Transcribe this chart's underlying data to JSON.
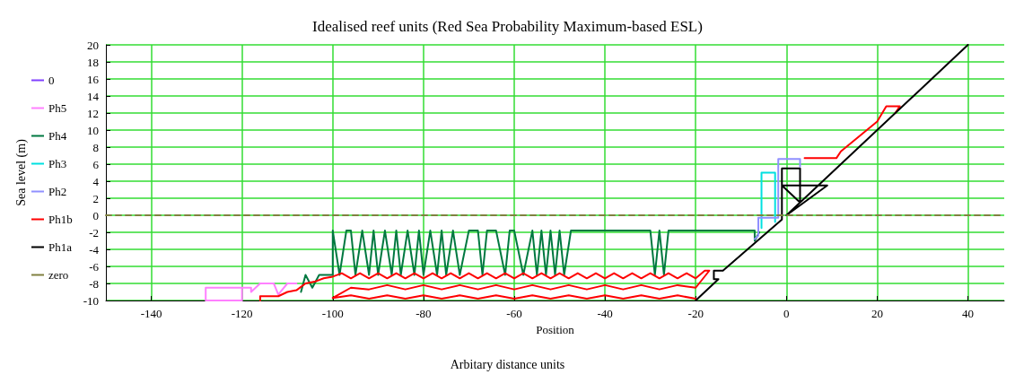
{
  "chart_data": {
    "type": "line",
    "title": "Idealised reef units (Red Sea Probability Maximum-based ESL)",
    "xlabel": "Position",
    "ylabel": "Sea level (m)",
    "annotations": [
      "Arbitary distance units"
    ],
    "xlim": [
      -150,
      48
    ],
    "xticks": [
      -140,
      -120,
      -100,
      -80,
      -60,
      -40,
      -20,
      0,
      20,
      40
    ],
    "ylim": [
      -10,
      20
    ],
    "yticks": [
      -10,
      -8,
      -6,
      -4,
      -2,
      0,
      2,
      4,
      6,
      8,
      10,
      12,
      14,
      16,
      18,
      20
    ],
    "grid": true,
    "legend": "left",
    "marker": "none",
    "series": [
      {
        "name": "0",
        "color": "#8040ff",
        "line_style": "dotted"
      },
      {
        "name": "Ph5",
        "color": "#ff80ff",
        "x": [
          -128,
          -128,
          -120,
          -120,
          -128,
          -128,
          -118,
          -118,
          -116,
          -113,
          -112,
          -110,
          -108
        ],
        "values": [
          -10,
          -8.5,
          -8.5,
          -10,
          -10,
          -8.5,
          -8.5,
          -9,
          -8,
          -8,
          -9.3,
          -8,
          -8
        ]
      },
      {
        "name": "Ph4",
        "color": "#007840",
        "x": [
          -107,
          -106,
          -104.5,
          -103,
          -100,
          -100,
          -98.5,
          -97,
          -96,
          -95,
          -93.5,
          -92,
          -91,
          -90,
          -88.5,
          -87,
          -86,
          -85,
          -83.5,
          -82,
          -81,
          -80,
          -78.5,
          -77,
          -76,
          -75,
          -73.5,
          -72,
          -70,
          -68,
          -67,
          -66,
          -64,
          -62,
          -61,
          -60,
          -58,
          -56,
          -55,
          -54,
          -53,
          -52,
          -51,
          -50,
          -49,
          -47.5,
          -30,
          -29,
          -28,
          -27,
          -26,
          -25,
          -7,
          -7,
          -6
        ],
        "values": [
          -9,
          -7,
          -8.5,
          -7,
          -7,
          -1.8,
          -7,
          -1.8,
          -1.8,
          -7,
          -1.8,
          -7,
          -1.8,
          -7,
          -1.8,
          -7,
          -1.8,
          -7,
          -1.8,
          -7,
          -1.8,
          -7,
          -1.8,
          -7,
          -1.8,
          -7,
          -1.8,
          -7,
          -1.8,
          -1.8,
          -7,
          -1.8,
          -1.8,
          -7,
          -1.8,
          -1.8,
          -7,
          -1.8,
          -7,
          -1.8,
          -7,
          -1.8,
          -7,
          -1.8,
          -7,
          -1.8,
          -1.8,
          -7,
          -1.8,
          -7,
          -1.8,
          -1.8,
          -1.8,
          -3,
          -2
        ]
      },
      {
        "name": "Ph3",
        "color": "#00e0e0",
        "x": [
          -5.5,
          -5.5,
          -2.5,
          -2.5
        ],
        "values": [
          -1.5,
          5,
          5,
          -0.8
        ]
      },
      {
        "name": "Ph2",
        "color": "#9090ff",
        "x": [
          -7,
          -6.2,
          -6.2,
          -1.8,
          -1.8,
          3,
          3
        ],
        "values": [
          -2.8,
          -2.4,
          -0.3,
          -0.3,
          6.6,
          6.6,
          5.7
        ]
      },
      {
        "name": "Ph1b",
        "color": "#ff0000",
        "x": [
          -116,
          -116,
          -112,
          -110,
          -108,
          -106,
          -104,
          -102,
          -100,
          -98,
          -96,
          -94,
          -92,
          -90,
          -88,
          -86,
          -84,
          -82,
          -80,
          -78,
          -76,
          -74,
          -72,
          -70,
          -68,
          -66,
          -64,
          -62,
          -60,
          -58,
          -56,
          -54,
          -52,
          -50,
          -48,
          -46,
          -44,
          -42,
          -40,
          -38,
          -36,
          -34,
          -32,
          -30,
          -28,
          -26,
          -24,
          -22,
          -20,
          -18,
          -17,
          -20,
          -24,
          -28,
          -32,
          -36,
          -40,
          -44,
          -48,
          -52,
          -56,
          -60,
          -64,
          -68,
          -72,
          -76,
          -80,
          -84,
          -88,
          -92,
          -96,
          -100,
          -96,
          -92,
          -88,
          -84,
          -80,
          -76,
          -72,
          -68,
          -64,
          -60,
          -56,
          -52,
          -48,
          -44,
          -40,
          -36,
          -32,
          -28,
          -24,
          -20,
          null,
          4,
          11,
          12,
          20,
          22,
          25,
          24
        ],
        "values": [
          -10,
          -9.5,
          -9.5,
          -9,
          -8.8,
          -8,
          -7.8,
          -7.4,
          -7.2,
          -6.8,
          -7.4,
          -6.8,
          -7.4,
          -6.8,
          -7.4,
          -6.8,
          -7.4,
          -6.8,
          -7.4,
          -6.8,
          -7.4,
          -6.8,
          -7.4,
          -6.8,
          -7.4,
          -6.8,
          -7.4,
          -6.8,
          -7.4,
          -6.8,
          -7.4,
          -6.8,
          -7.4,
          -6.8,
          -7.4,
          -6.8,
          -7.4,
          -6.8,
          -7.4,
          -6.8,
          -7.4,
          -6.8,
          -7.4,
          -6.8,
          -7.4,
          -6.8,
          -7.4,
          -6.8,
          -7.4,
          -6.5,
          -6.5,
          -8.5,
          -8.2,
          -8.7,
          -8.2,
          -8.7,
          -8.2,
          -8.7,
          -8.2,
          -8.7,
          -8.2,
          -8.7,
          -8.2,
          -8.7,
          -8.2,
          -8.7,
          -8.2,
          -8.7,
          -8.2,
          -8.7,
          -8.5,
          -9.7,
          -9.4,
          -9.8,
          -9.4,
          -9.8,
          -9.4,
          -9.8,
          -9.4,
          -9.8,
          -9.4,
          -9.8,
          -9.4,
          -9.8,
          -9.4,
          -9.8,
          -9.4,
          -9.8,
          -9.4,
          -9.8,
          -9.4,
          -9.8,
          null,
          6.7,
          6.7,
          7.5,
          11,
          12.8,
          12.8,
          12
        ]
      },
      {
        "name": "Ph1a",
        "color": "#000000",
        "x": [
          -20,
          -15,
          -16,
          -16,
          -14,
          -1,
          -1,
          3,
          3,
          -1,
          9,
          0,
          40
        ],
        "values": [
          -10,
          -7.5,
          -7.5,
          -6.5,
          -6.5,
          -0.5,
          5.5,
          5.5,
          1.5,
          3.5,
          3.5,
          0,
          20
        ]
      },
      {
        "name": "zero",
        "color": "#808040",
        "line_style": "dashed",
        "x": [
          -150,
          48
        ],
        "values": [
          0,
          0
        ]
      }
    ]
  }
}
